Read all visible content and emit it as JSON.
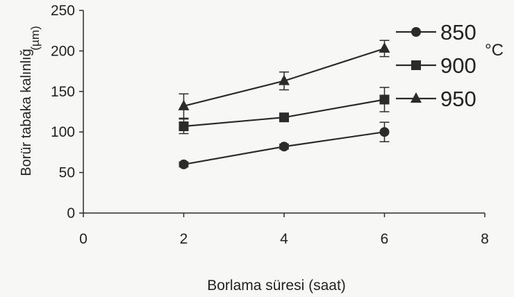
{
  "chart_data": {
    "type": "line",
    "xlabel": "Borlama süresi (saat)",
    "ylabel": "Borür tabaka kalınlığ",
    "ylabel_unit": "(µm)",
    "xlim": [
      0,
      8
    ],
    "ylim": [
      0,
      250
    ],
    "xticks": [
      0,
      2,
      4,
      6,
      8
    ],
    "yticks": [
      0,
      50,
      100,
      150,
      200,
      250
    ],
    "grid": false,
    "legend_position": "top-right",
    "legend_unit": "°C",
    "series": [
      {
        "name": "850",
        "marker": "circle",
        "x": [
          2,
          4,
          6
        ],
        "y": [
          60,
          82,
          100
        ],
        "err": [
          3,
          3,
          12
        ]
      },
      {
        "name": "900",
        "marker": "square",
        "x": [
          2,
          4,
          6
        ],
        "y": [
          107,
          118,
          140
        ],
        "err": [
          9,
          3,
          15
        ]
      },
      {
        "name": "950",
        "marker": "triangle",
        "x": [
          2,
          4,
          6
        ],
        "y": [
          132,
          163,
          203
        ],
        "err": [
          15,
          11,
          10
        ]
      }
    ],
    "color": "#2b2b2b"
  }
}
